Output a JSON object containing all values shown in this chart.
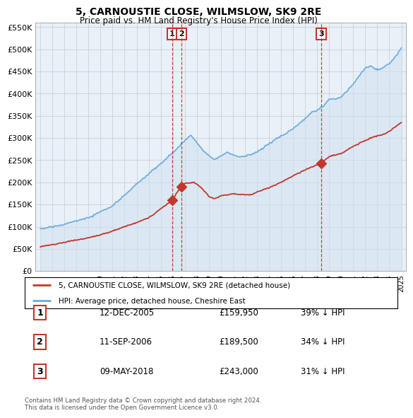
{
  "title": "5, CARNOUSTIE CLOSE, WILMSLOW, SK9 2RE",
  "subtitle": "Price paid vs. HM Land Registry's House Price Index (HPI)",
  "legend_line1": "5, CARNOUSTIE CLOSE, WILMSLOW, SK9 2RE (detached house)",
  "legend_line2": "HPI: Average price, detached house, Cheshire East",
  "footnote1": "Contains HM Land Registry data © Crown copyright and database right 2024.",
  "footnote2": "This data is licensed under the Open Government Licence v3.0.",
  "transactions": [
    {
      "num": 1,
      "date": "12-DEC-2005",
      "price": "£159,950",
      "pct": "39% ↓ HPI",
      "x_year": 2005.95,
      "price_val": 159950
    },
    {
      "num": 2,
      "date": "11-SEP-2006",
      "price": "£189,500",
      "pct": "34% ↓ HPI",
      "x_year": 2006.7,
      "price_val": 189500
    },
    {
      "num": 3,
      "date": "09-MAY-2018",
      "price": "£243,000",
      "pct": "31% ↓ HPI",
      "x_year": 2018.35,
      "price_val": 243000
    }
  ],
  "hpi_color": "#6aace0",
  "hpi_fill_color": "#ddeeff",
  "price_color": "#c0392b",
  "grid_color": "#cccccc",
  "background_color": "#ffffff",
  "plot_bg_color": "#e8f0f8",
  "ylim": [
    0,
    560000
  ],
  "yticks": [
    0,
    50000,
    100000,
    150000,
    200000,
    250000,
    300000,
    350000,
    400000,
    450000,
    500000,
    550000
  ],
  "xlim_start": 1994.6,
  "xlim_end": 2025.4,
  "xticks": [
    1995,
    1996,
    1997,
    1998,
    1999,
    2000,
    2001,
    2002,
    2003,
    2004,
    2005,
    2006,
    2007,
    2008,
    2009,
    2010,
    2011,
    2012,
    2013,
    2014,
    2015,
    2016,
    2017,
    2018,
    2019,
    2020,
    2021,
    2022,
    2023,
    2024,
    2025
  ]
}
